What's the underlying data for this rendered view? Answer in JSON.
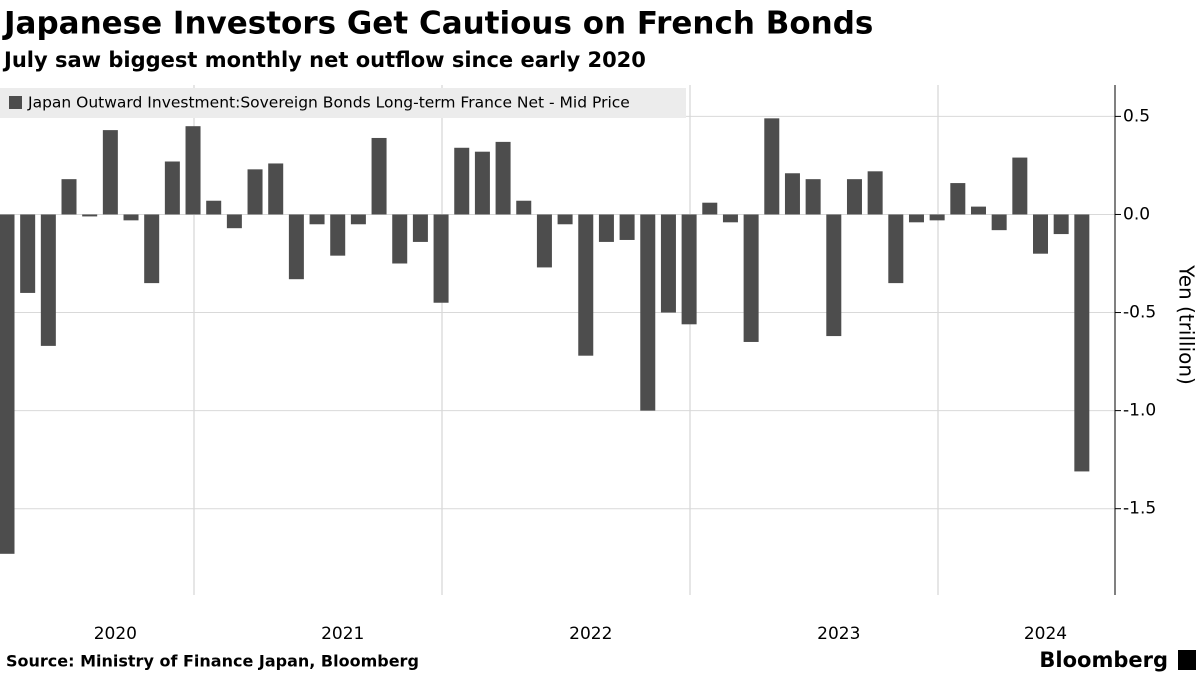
{
  "chart_data": {
    "type": "bar",
    "title": "Japanese Investors Get Cautious on French Bonds",
    "subtitle": "July saw biggest monthly net outflow since early 2020",
    "legend_label": "Japan Outward Investment:Sovereign Bonds Long-term France Net - Mid Price",
    "y_label": "Yen (trillion)",
    "source": "Source: Ministry of Finance Japan, Bloomberg",
    "brand": "Bloomberg",
    "categories": [
      null,
      null,
      null,
      null,
      null,
      "2020",
      null,
      null,
      null,
      null,
      null,
      null,
      null,
      null,
      null,
      null,
      "2021",
      null,
      null,
      null,
      null,
      null,
      null,
      null,
      null,
      null,
      null,
      null,
      "2022",
      null,
      null,
      null,
      null,
      null,
      null,
      null,
      null,
      null,
      null,
      null,
      "2023",
      null,
      null,
      null,
      null,
      null,
      null,
      null,
      null,
      null,
      "2024",
      null,
      null
    ],
    "values": [
      -1.73,
      -0.4,
      -0.67,
      0.18,
      -0.01,
      0.43,
      -0.03,
      -0.35,
      0.27,
      0.45,
      0.07,
      -0.07,
      0.23,
      0.26,
      -0.33,
      -0.05,
      -0.21,
      -0.05,
      0.39,
      -0.25,
      -0.14,
      -0.45,
      0.34,
      0.32,
      0.37,
      0.07,
      -0.27,
      -0.05,
      -0.72,
      -0.14,
      -0.13,
      -1.0,
      -0.5,
      -0.56,
      0.06,
      -0.04,
      -0.65,
      0.49,
      0.21,
      0.18,
      -0.62,
      0.18,
      0.22,
      -0.35,
      -0.04,
      -0.03,
      0.16,
      0.04,
      -0.08,
      0.29,
      -0.2,
      -0.1,
      -1.31
    ],
    "color": "#4d4d4d",
    "ylim": [
      -1.94,
      0.66
    ],
    "yticks": [
      {
        "value": 0.5,
        "label": "0.5"
      },
      {
        "value": 0,
        "label": "0.0"
      },
      {
        "value": -0.5,
        "label": "-0.5"
      },
      {
        "value": -1,
        "label": "-1.0"
      },
      {
        "value": -1.5,
        "label": "-1.5"
      }
    ],
    "grid": true
  }
}
